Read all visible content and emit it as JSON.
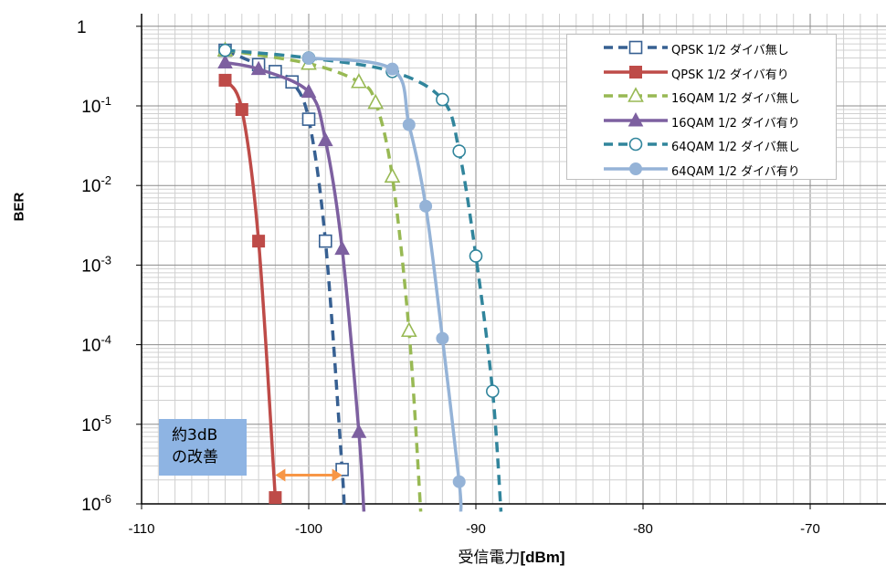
{
  "chart_data": {
    "type": "line",
    "ylabel": "BER",
    "xlabel_main": "受信電力",
    "xlabel_unit": "[dBm]",
    "xlim": [
      -110,
      -60
    ],
    "ylim": [
      1e-06,
      1
    ],
    "y_scale": "log",
    "grid": true,
    "legend_position": "top-right",
    "x_ticks": [
      "-110",
      "-100",
      "-90",
      "-80",
      "-70"
    ],
    "y_ticks": [
      {
        "base": "1",
        "exp": ""
      },
      {
        "base": "10",
        "exp": "-1"
      },
      {
        "base": "10",
        "exp": "-2"
      },
      {
        "base": "10",
        "exp": "-3"
      },
      {
        "base": "10",
        "exp": "-4"
      },
      {
        "base": "10",
        "exp": "-5"
      },
      {
        "base": "10",
        "exp": "-6"
      }
    ],
    "series": [
      {
        "name": "QPSK 1/2 ダイバ無し",
        "color": "#376092",
        "dash": true,
        "marker": "open-square",
        "points": [
          [
            -105,
            0.5
          ],
          [
            -103,
            0.33
          ],
          [
            -102,
            0.27
          ],
          [
            -101,
            0.2
          ],
          [
            -100,
            0.068
          ],
          [
            -99,
            0.002
          ],
          [
            -98,
            2.7e-06
          ]
        ],
        "curve_end": [
          -97.9,
          9e-07
        ]
      },
      {
        "name": "QPSK 1/2 ダイバ有り",
        "color": "#be4b48",
        "dash": false,
        "marker": "filled-square",
        "points": [
          [
            -105,
            0.21
          ],
          [
            -104,
            0.09
          ],
          [
            -103,
            0.002
          ],
          [
            -102,
            1.2e-06
          ]
        ]
      },
      {
        "name": "16QAM 1/2 ダイバ無し",
        "color": "#98b954",
        "dash": true,
        "marker": "open-triangle",
        "points": [
          [
            -105,
            0.5
          ],
          [
            -100,
            0.34
          ],
          [
            -97,
            0.2
          ],
          [
            -96,
            0.11
          ],
          [
            -95,
            0.013
          ],
          [
            -94,
            0.00015
          ]
        ],
        "curve_end": [
          -93.3,
          8e-07
        ]
      },
      {
        "name": "16QAM 1/2 ダイバ有り",
        "color": "#7d60a0",
        "dash": false,
        "marker": "filled-triangle",
        "points": [
          [
            -105,
            0.35
          ],
          [
            -103,
            0.29
          ],
          [
            -100,
            0.15
          ],
          [
            -99,
            0.037
          ],
          [
            -98,
            0.0016
          ],
          [
            -97,
            8e-06
          ]
        ],
        "curve_end": [
          -96.7,
          8e-07
        ]
      },
      {
        "name": "64QAM 1/2 ダイバ無し",
        "color": "#31859c",
        "dash": true,
        "marker": "open-circle",
        "points": [
          [
            -105,
            0.5
          ],
          [
            -100,
            0.4
          ],
          [
            -95,
            0.27
          ],
          [
            -92,
            0.12
          ],
          [
            -91,
            0.027
          ],
          [
            -90,
            0.0013
          ],
          [
            -89,
            2.6e-05
          ]
        ],
        "curve_end": [
          -88.5,
          8e-07
        ]
      },
      {
        "name": "64QAM 1/2 ダイバ有り",
        "color": "#95b3d7",
        "dash": false,
        "marker": "filled-circle",
        "points": [
          [
            -100,
            0.4
          ],
          [
            -95,
            0.29
          ],
          [
            -94,
            0.058
          ],
          [
            -93,
            0.0055
          ],
          [
            -92,
            0.00012
          ],
          [
            -91,
            1.9e-06
          ]
        ],
        "curve_end": [
          -90.9,
          8e-07
        ]
      }
    ],
    "annotation": {
      "lines": [
        "約3dB",
        "の改善"
      ],
      "box_color": "#8eb4e3",
      "arrow_color": "#f79646",
      "arrow_from_x": -102,
      "arrow_to_x": -98,
      "arrow_y": 2.3e-06
    }
  }
}
